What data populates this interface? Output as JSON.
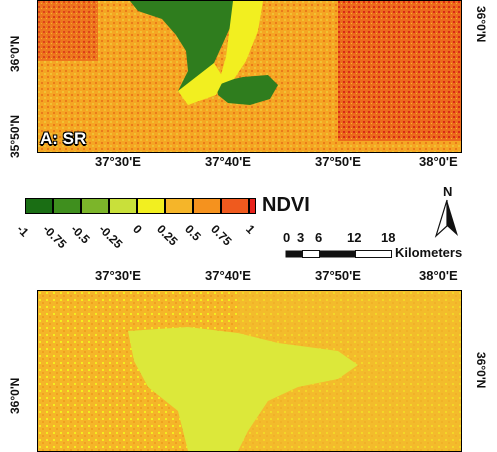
{
  "panel_a": {
    "label": "A: SR",
    "lon_labels": [
      "37°30'E",
      "37°40'E",
      "37°50'E",
      "38°0'E"
    ],
    "lat_labels_left": [
      "36°0'N",
      "35°50'N"
    ],
    "lat_labels_right": [
      "36°0'N"
    ]
  },
  "panel_b": {
    "lon_labels": [
      "37°30'E",
      "37°40'E",
      "37°50'E",
      "38°0'E"
    ],
    "lat_labels_left": [
      "36°0'N"
    ],
    "lat_labels_right": [
      "36°0'N"
    ]
  },
  "legend": {
    "title": "NDVI",
    "values": [
      "-1",
      "-0.75",
      "-0.5",
      "-0.25",
      "0",
      "0.25",
      "0.5",
      "0.75",
      "1"
    ],
    "colors": [
      "#1a6e14",
      "#3f8f1e",
      "#7cb52a",
      "#c9e03a",
      "#f2ef20",
      "#f5b529",
      "#f5921e",
      "#ef5a1e",
      "#e8231c"
    ]
  },
  "north_arrow": {
    "label": "N"
  },
  "scale_bar": {
    "ticks": [
      "0",
      "3",
      "6",
      "12",
      "18"
    ],
    "unit": "Kilometers"
  }
}
